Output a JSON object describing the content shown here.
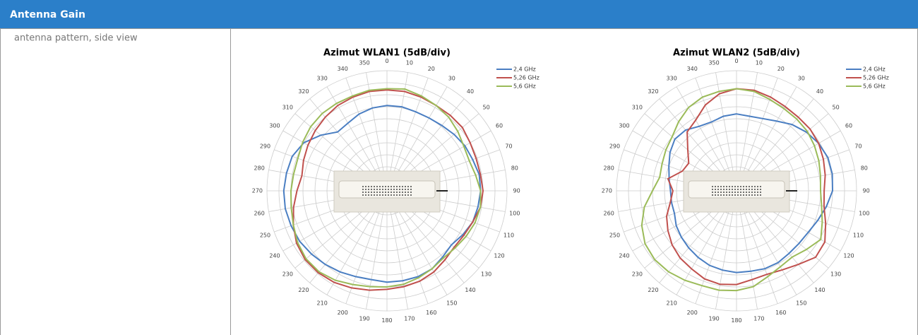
{
  "header": {
    "title": "Antenna Gain"
  },
  "table": {
    "rows": [
      {
        "label": "antenna pattern, side view"
      }
    ]
  },
  "chart_data": [
    {
      "type": "polar",
      "title": "Azimut  WLAN1 (5dB/div)",
      "legend": "top-right",
      "direction": "clockwise",
      "rlim": [
        0,
        10
      ],
      "theta": [
        0,
        10,
        20,
        30,
        40,
        50,
        60,
        70,
        80,
        90,
        100,
        110,
        120,
        130,
        140,
        150,
        160,
        170,
        180,
        190,
        200,
        210,
        220,
        230,
        240,
        250,
        260,
        270,
        280,
        290,
        300,
        310,
        320,
        330,
        340,
        350
      ],
      "series": [
        {
          "name": "2,4 GHz",
          "color": "#4a7ec2",
          "values": [
            7.1,
            7.1,
            7.0,
            7.0,
            7.1,
            7.3,
            7.5,
            7.6,
            7.8,
            7.8,
            7.7,
            7.6,
            7.3,
            7.0,
            7.2,
            7.5,
            7.6,
            7.6,
            7.6,
            7.5,
            7.6,
            7.8,
            8.0,
            8.2,
            8.4,
            8.5,
            8.6,
            8.6,
            8.5,
            8.4,
            8.0,
            7.2,
            6.4,
            6.5,
            6.8,
            7.0
          ]
        },
        {
          "name": "5,26 GHz",
          "color": "#c0504d",
          "values": [
            8.4,
            8.4,
            8.3,
            8.2,
            8.2,
            8.2,
            8.0,
            7.9,
            7.9,
            8.0,
            7.9,
            7.6,
            7.4,
            7.3,
            7.5,
            7.8,
            8.0,
            8.1,
            8.2,
            8.4,
            8.6,
            8.8,
            8.9,
            8.9,
            8.7,
            8.3,
            7.9,
            7.5,
            7.2,
            7.4,
            7.6,
            7.8,
            8.0,
            8.2,
            8.3,
            8.4
          ]
        },
        {
          "name": "5,6 GHz",
          "color": "#9bbb59",
          "values": [
            8.5,
            8.6,
            8.4,
            8.2,
            8.0,
            7.7,
            7.4,
            7.3,
            7.5,
            7.8,
            7.9,
            7.8,
            7.6,
            7.4,
            7.3,
            7.5,
            7.7,
            7.9,
            8.0,
            8.1,
            8.3,
            8.6,
            8.8,
            8.8,
            8.6,
            8.3,
            8.1,
            8.0,
            7.9,
            7.9,
            8.1,
            8.3,
            8.4,
            8.4,
            8.4,
            8.5
          ]
        }
      ]
    },
    {
      "type": "polar",
      "title": "Azimut  WLAN2 (5dB/div)",
      "legend": "top-right",
      "direction": "clockwise",
      "rlim": [
        0,
        10
      ],
      "theta": [
        0,
        10,
        20,
        30,
        40,
        50,
        60,
        70,
        80,
        90,
        100,
        110,
        120,
        130,
        140,
        150,
        160,
        170,
        180,
        190,
        200,
        210,
        220,
        230,
        240,
        250,
        260,
        270,
        280,
        290,
        300,
        310,
        320,
        330,
        340,
        350
      ],
      "series": [
        {
          "name": "2,4 GHz",
          "color": "#4a7ec2",
          "values": [
            6.4,
            6.3,
            6.4,
            6.7,
            7.2,
            7.6,
            7.9,
            8.1,
            8.1,
            8.0,
            7.6,
            7.2,
            6.9,
            6.8,
            6.8,
            6.9,
            6.9,
            6.8,
            6.8,
            6.7,
            6.6,
            6.4,
            6.2,
            6.0,
            5.8,
            5.5,
            5.5,
            5.5,
            5.7,
            6.0,
            6.4,
            6.7,
            6.6,
            6.2,
            6.1,
            6.3
          ]
        },
        {
          "name": "5,26 GHz",
          "color": "#c0504d",
          "values": [
            8.5,
            8.5,
            8.3,
            8.1,
            8.0,
            8.0,
            7.9,
            7.7,
            7.5,
            7.3,
            7.4,
            7.9,
            8.5,
            8.6,
            8.0,
            7.6,
            7.4,
            7.5,
            7.8,
            7.9,
            7.8,
            7.5,
            7.3,
            7.0,
            6.6,
            6.2,
            5.6,
            5.3,
            5.8,
            4.8,
            4.6,
            5.3,
            6.4,
            6.8,
            7.6,
            8.2
          ]
        },
        {
          "name": "5,6 GHz",
          "color": "#9bbb59",
          "values": [
            8.5,
            8.4,
            8.1,
            7.9,
            7.8,
            7.7,
            7.5,
            7.3,
            7.1,
            7.0,
            7.2,
            7.6,
            8.1,
            7.6,
            7.2,
            7.3,
            7.6,
            8.1,
            8.3,
            8.4,
            8.4,
            8.6,
            8.8,
            8.9,
            8.8,
            8.4,
            7.8,
            7.0,
            6.5,
            6.6,
            6.8,
            7.0,
            7.5,
            8.0,
            8.3,
            8.4
          ]
        }
      ]
    }
  ]
}
